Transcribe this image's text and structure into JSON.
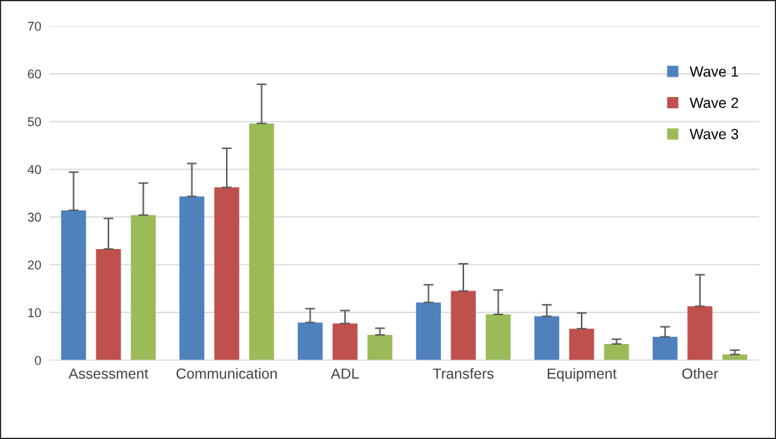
{
  "chart_data": {
    "type": "bar",
    "categories": [
      "Assessment",
      "Communication",
      "ADL",
      "Transfers",
      "Equipment",
      "Other"
    ],
    "series": [
      {
        "name": "Wave 1",
        "color": "#4f81bd",
        "values": [
          31.4,
          34.3,
          7.9,
          12.1,
          9.2,
          4.9
        ],
        "errors": [
          [
            31.4,
            39.4
          ],
          [
            34.3,
            41.2
          ],
          [
            7.9,
            10.8
          ],
          [
            12.1,
            15.8
          ],
          [
            9.2,
            11.6
          ],
          [
            4.9,
            7.0
          ]
        ]
      },
      {
        "name": "Wave 2",
        "color": "#c0504d",
        "values": [
          23.3,
          36.2,
          7.7,
          14.5,
          6.6,
          11.3
        ],
        "errors": [
          [
            23.3,
            29.7
          ],
          [
            36.2,
            44.4
          ],
          [
            7.7,
            10.4
          ],
          [
            14.5,
            20.2
          ],
          [
            6.6,
            9.9
          ],
          [
            11.3,
            17.9
          ]
        ]
      },
      {
        "name": "Wave 3",
        "color": "#9bbb59",
        "values": [
          30.4,
          49.6,
          5.3,
          9.6,
          3.4,
          1.2
        ],
        "errors": [
          [
            30.4,
            37.1
          ],
          [
            49.6,
            57.8
          ],
          [
            5.3,
            6.7
          ],
          [
            9.6,
            14.7
          ],
          [
            3.4,
            4.4
          ],
          [
            1.2,
            2.1
          ]
        ]
      }
    ],
    "ylim": [
      0,
      70
    ],
    "yticks": [
      0,
      10,
      20,
      30,
      40,
      50,
      60,
      70
    ],
    "grid": "y",
    "legend": "top right"
  }
}
